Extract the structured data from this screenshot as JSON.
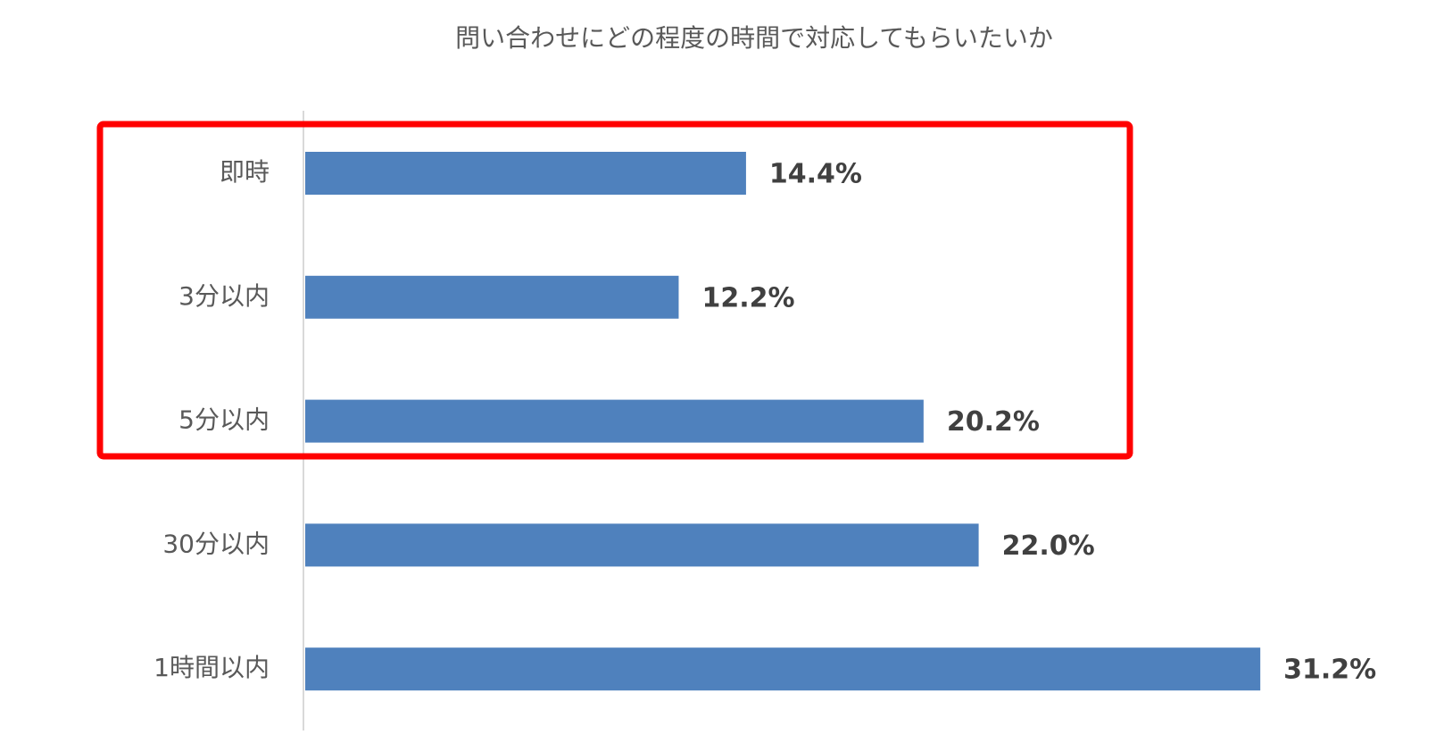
{
  "chart_data": {
    "type": "bar",
    "orientation": "horizontal",
    "title": "問い合わせにどの程度の時間で対応してもらいたいか",
    "categories": [
      "即時",
      "3分以内",
      "5分以内",
      "30分以内",
      "1時間以内"
    ],
    "values": [
      14.4,
      12.2,
      20.2,
      22.0,
      31.2
    ],
    "value_labels": [
      "14.4%",
      "12.2%",
      "20.2%",
      "22.0%",
      "31.2%"
    ],
    "color": "#4f81bd"
  }
}
